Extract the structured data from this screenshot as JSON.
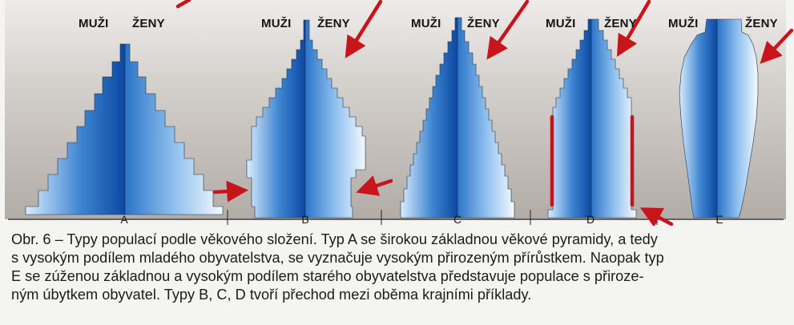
{
  "figure": {
    "header_left": "MUŽI",
    "header_right": "ŽENY",
    "panels": [
      {
        "letter": "A"
      },
      {
        "letter": "B"
      },
      {
        "letter": "C"
      },
      {
        "letter": "D"
      },
      {
        "letter": "E"
      }
    ],
    "colors": {
      "pyramid_dark": "#0b48a2",
      "pyramid_light": "#e0efff",
      "annotation_red": "#c8151b",
      "panel_background": "#b7b1ad"
    }
  },
  "caption": {
    "line1": "Obr. 6 – Typy populací podle věkového složení. Typ A se širokou základnou věkové pyramidy, a tedy",
    "line2": "s vysokým podílem mladého obyvatelstva, se vyznačuje vysokým přirozeným přírůstkem. Naopak typ",
    "line3": "E se zúženou základnou a vysokým podílem starého obyvatelstva představuje populace s přiroze-",
    "line4": "ným úbytkem obyvatel. Typy B, C, D tvoří přechod mezi oběma krajními příklady."
  }
}
